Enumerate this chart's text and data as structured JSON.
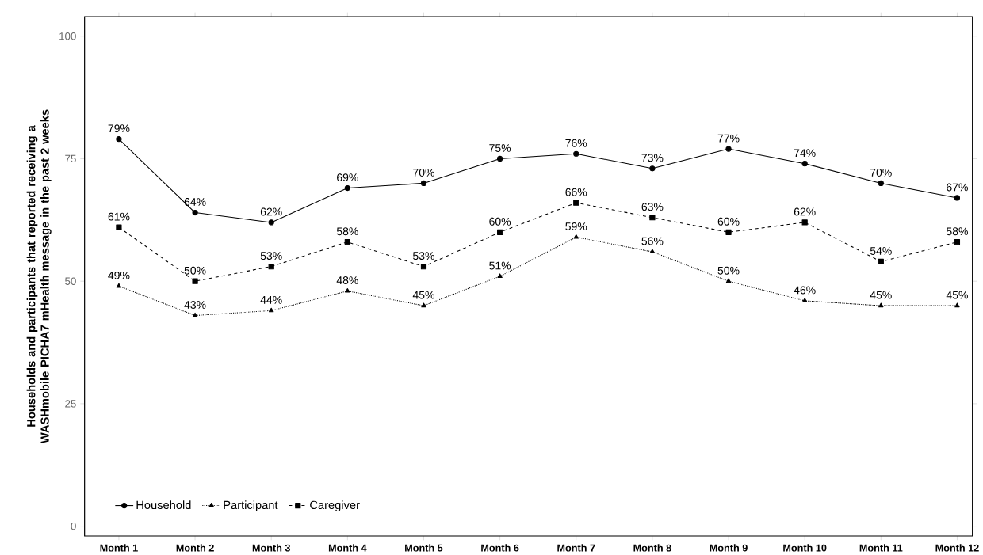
{
  "chart_data": {
    "type": "line",
    "ylabel": "Households and participants that reported receiving a WASHmobile PICHA7 mHealth message in the past 2 weeks",
    "categories": [
      "Month 1",
      "Month 2",
      "Month 3",
      "Month 4",
      "Month 5",
      "Month 6",
      "Month 7",
      "Month 8",
      "Month 9",
      "Month 10",
      "Month 11",
      "Month 12"
    ],
    "series": [
      {
        "name": "Household",
        "color": "#000000",
        "marker": "circle",
        "line_style": "solid",
        "values": [
          79,
          64,
          62,
          69,
          70,
          75,
          76,
          73,
          77,
          74,
          70,
          67
        ],
        "value_labels": [
          "79%",
          "64%",
          "62%",
          "69%",
          "70%",
          "75%",
          "76%",
          "73%",
          "77%",
          "74%",
          "70%",
          "67%"
        ]
      },
      {
        "name": "Participant",
        "color": "#000000",
        "marker": "triangle",
        "line_style": "dotted",
        "values": [
          49,
          43,
          44,
          48,
          45,
          51,
          59,
          56,
          50,
          46,
          45,
          45
        ],
        "value_labels": [
          "49%",
          "43%",
          "44%",
          "48%",
          "45%",
          "51%",
          "59%",
          "56%",
          "50%",
          "46%",
          "45%",
          "45%"
        ]
      },
      {
        "name": "Caregiver",
        "color": "#000000",
        "marker": "square",
        "line_style": "dashed",
        "values": [
          61,
          50,
          53,
          58,
          53,
          60,
          66,
          63,
          60,
          62,
          54,
          58
        ],
        "value_labels": [
          "61%",
          "50%",
          "53%",
          "58%",
          "53%",
          "60%",
          "66%",
          "63%",
          "60%",
          "62%",
          "54%",
          "58%"
        ]
      }
    ],
    "ylim": [
      -2,
      104
    ],
    "yticks": [
      0,
      25,
      50,
      75,
      100
    ],
    "grid": false,
    "legend": "bottom left"
  }
}
